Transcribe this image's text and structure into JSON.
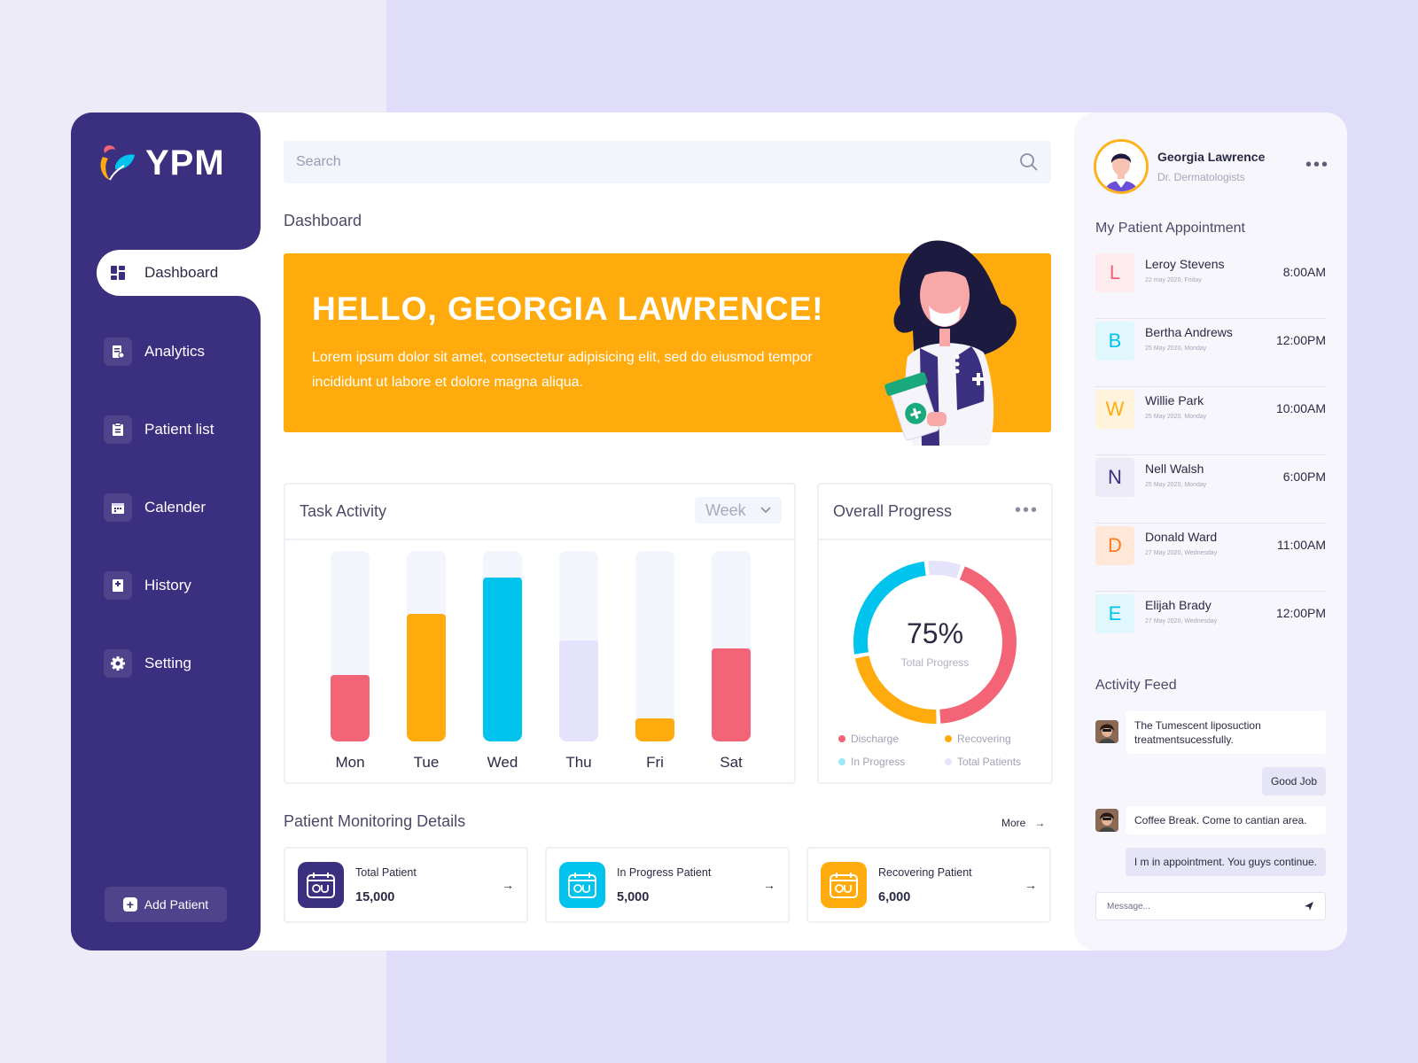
{
  "app": {
    "logo_text": "YPM"
  },
  "sidebar": {
    "items": [
      {
        "label": "Dashboard",
        "icon": "dashboard-icon",
        "active": true
      },
      {
        "label": "Analytics",
        "icon": "analytics-icon"
      },
      {
        "label": "Patient list",
        "icon": "clipboard-icon"
      },
      {
        "label": "Calender",
        "icon": "calendar-icon"
      },
      {
        "label": "History",
        "icon": "history-icon"
      },
      {
        "label": "Setting",
        "icon": "gear-icon"
      }
    ],
    "add_patient_label": "Add Patient"
  },
  "search": {
    "placeholder": "Search"
  },
  "page_title": "Dashboard",
  "banner": {
    "greeting": "HELLO, GEORGIA LAWRENCE!",
    "text": "Lorem ipsum dolor sit amet, consectetur adipisicing elit, sed do eiusmod tempor incididunt ut labore et dolore magna aliqua."
  },
  "task_activity": {
    "title": "Task Activity",
    "period": "Week"
  },
  "chart_data": {
    "type": "bar",
    "categories": [
      "Mon",
      "Tue",
      "Wed",
      "Thu",
      "Fri",
      "Sat"
    ],
    "values": [
      35,
      67,
      86,
      53,
      12,
      49
    ],
    "ylim": [
      0,
      100
    ],
    "colors": [
      "#f26476",
      "#ffaa0d",
      "#00c4ee",
      "#e4e3fb",
      "#ffaa0d",
      "#f26476"
    ],
    "grid": false
  },
  "overall_progress": {
    "title": "Overall Progress",
    "percent": 75,
    "percent_label": "75%",
    "caption": "Total Progress",
    "segments": [
      {
        "name": "Discharge",
        "value": 42,
        "color": "#f26476"
      },
      {
        "name": "Recovering",
        "value": 22,
        "color": "#ffaa0d"
      },
      {
        "name": "In Progress",
        "value": 25,
        "color": "#00c4ee"
      },
      {
        "name": "Total Patients",
        "value": 7,
        "color": "#e4e3fb"
      }
    ],
    "legend": [
      "Discharge",
      "Recovering",
      "In Progress",
      "Total Patients"
    ]
  },
  "monitoring": {
    "title": "Patient Monitoring Details",
    "more_label": "More",
    "cards": [
      {
        "label": "Total Patient",
        "value": "15,000",
        "color": "#3b2f7f"
      },
      {
        "label": "In Progress Patient",
        "value": "5,000",
        "color": "#00c4ee"
      },
      {
        "label": "Recovering Patient",
        "value": "6,000",
        "color": "#ffaa0d"
      }
    ]
  },
  "profile": {
    "name": "Georgia Lawrence",
    "role": "Dr. Dermatologists"
  },
  "appointments": {
    "title": "My Patient Appointment",
    "items": [
      {
        "letter": "L",
        "name": "Leroy Stevens",
        "date": "22 may 2020, Friday",
        "time": "8:00AM",
        "color": "#f26476",
        "bg": "#fdebee"
      },
      {
        "letter": "B",
        "name": "Bertha Andrews",
        "date": "25 May 2020, Monday",
        "time": "12:00PM",
        "color": "#00c4ee",
        "bg": "#dff7fd"
      },
      {
        "letter": "W",
        "name": "Willie Park",
        "date": "25 May 2020, Monday",
        "time": "10:00AM",
        "color": "#ffaa0d",
        "bg": "#fff3dc"
      },
      {
        "letter": "N",
        "name": "Nell Walsh",
        "date": "25 May 2020, Monday",
        "time": "6:00PM",
        "color": "#3b2f7f",
        "bg": "#ebeaf6"
      },
      {
        "letter": "D",
        "name": "Donald Ward",
        "date": "27 May 2020, Wednesday",
        "time": "11:00AM",
        "color": "#ff7a1a",
        "bg": "#ffe8d8"
      },
      {
        "letter": "E",
        "name": "Elijah Brady",
        "date": "27 May 2020, Wednesday",
        "time": "12:00PM",
        "color": "#00c4ee",
        "bg": "#dff7fd"
      }
    ]
  },
  "feed": {
    "title": "Activity Feed",
    "messages": [
      {
        "text": "The Tumescent liposuction treatmentsucessfully.",
        "from": "other"
      },
      {
        "text": "Good Job",
        "from": "me"
      },
      {
        "text": "Coffee Break. Come to cantian area.",
        "from": "other"
      },
      {
        "text": "I m in appointment. You guys continue.",
        "from": "me"
      }
    ],
    "message_placeholder": "Message..."
  }
}
